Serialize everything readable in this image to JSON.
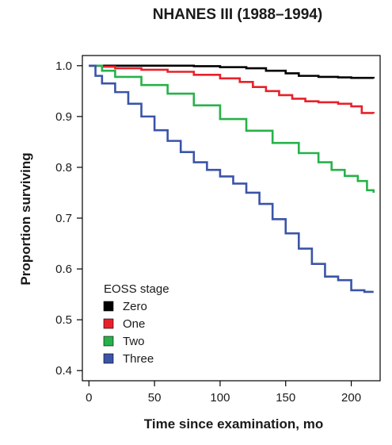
{
  "chart_data": {
    "type": "line",
    "title": "NHANES III (1988–1994)",
    "xlabel": "Time since examination, mo",
    "ylabel": "Proportion surviving",
    "xlim": [
      -5,
      222
    ],
    "ylim": [
      0.38,
      1.02
    ],
    "xticks": [
      0,
      50,
      100,
      150,
      200
    ],
    "xtick_labels": [
      "0",
      "50",
      "100",
      "150",
      "200"
    ],
    "yticks": [
      0.4,
      0.5,
      0.6,
      0.7,
      0.8,
      0.9,
      1.0
    ],
    "ytick_labels": [
      "0.4",
      "0.5",
      "0.6",
      "0.7",
      "0.8",
      "0.9",
      "1.0"
    ],
    "grid": false,
    "legend": {
      "title": "EOSS stage",
      "placement": "bottom-left"
    },
    "series": [
      {
        "name": "Zero",
        "color": "#000000",
        "x": [
          0,
          20,
          50,
          80,
          100,
          120,
          135,
          150,
          160,
          175,
          190,
          200,
          217
        ],
        "y": [
          1.0,
          1.0,
          1.0,
          0.999,
          0.997,
          0.995,
          0.99,
          0.985,
          0.98,
          0.978,
          0.977,
          0.976,
          0.975
        ]
      },
      {
        "name": "One",
        "color": "#e8202a",
        "x": [
          0,
          10,
          20,
          40,
          60,
          80,
          100,
          115,
          125,
          135,
          145,
          155,
          165,
          175,
          190,
          200,
          208,
          217
        ],
        "y": [
          1.0,
          0.998,
          0.995,
          0.992,
          0.988,
          0.982,
          0.975,
          0.968,
          0.958,
          0.95,
          0.942,
          0.935,
          0.93,
          0.928,
          0.925,
          0.92,
          0.907,
          0.906
        ]
      },
      {
        "name": "Two",
        "color": "#27b14a",
        "x": [
          0,
          10,
          20,
          40,
          60,
          80,
          100,
          120,
          140,
          160,
          175,
          185,
          195,
          205,
          212,
          217
        ],
        "y": [
          1.0,
          0.99,
          0.978,
          0.962,
          0.945,
          0.922,
          0.895,
          0.872,
          0.848,
          0.828,
          0.81,
          0.795,
          0.783,
          0.773,
          0.755,
          0.75
        ]
      },
      {
        "name": "Three",
        "color": "#3b54a7",
        "x": [
          0,
          5,
          10,
          20,
          30,
          40,
          50,
          60,
          70,
          80,
          90,
          100,
          110,
          120,
          130,
          140,
          150,
          160,
          170,
          180,
          190,
          200,
          210,
          217
        ],
        "y": [
          1.0,
          0.98,
          0.965,
          0.948,
          0.925,
          0.9,
          0.873,
          0.852,
          0.83,
          0.81,
          0.795,
          0.782,
          0.768,
          0.75,
          0.728,
          0.698,
          0.67,
          0.64,
          0.61,
          0.585,
          0.578,
          0.558,
          0.555,
          0.555
        ]
      }
    ]
  }
}
